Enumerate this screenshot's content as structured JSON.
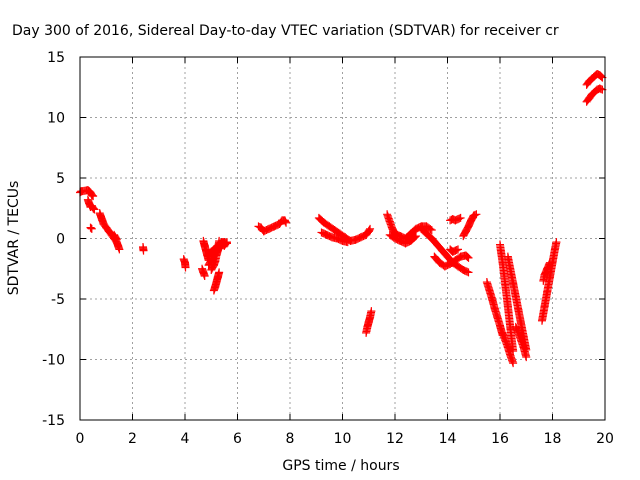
{
  "chart_data": {
    "type": "scatter",
    "title": "Day 300 of 2016, Sidereal Day-to-day VTEC variation (SDTVAR) for receiver cr",
    "xlabel": "GPS time / hours",
    "ylabel": "SDTVAR / TECUs",
    "xlim": [
      0,
      20
    ],
    "ylim": [
      -15,
      15
    ],
    "xticks": [
      "0",
      "2",
      "4",
      "6",
      "8",
      "10",
      "12",
      "14",
      "16",
      "18",
      "20"
    ],
    "yticks": [
      "15",
      "10",
      "5",
      "0",
      "-5",
      "-10",
      "-15"
    ],
    "grid": true,
    "marker": "+",
    "color": "#ff0000",
    "series": [
      {
        "x": [
          0.0,
          0.05,
          0.3,
          0.35,
          0.4,
          0.45,
          0.5
        ],
        "y": [
          3.8,
          3.9,
          4.0,
          3.9,
          3.8,
          3.6,
          3.5
        ]
      },
      {
        "x": [
          0.3,
          0.35,
          0.4,
          0.45,
          0.5,
          0.55
        ],
        "y": [
          3.2,
          2.9,
          2.6,
          2.7,
          2.5,
          2.4
        ]
      },
      {
        "x": [
          0.4,
          0.45
        ],
        "y": [
          0.9,
          0.8
        ]
      },
      {
        "x": [
          0.75,
          0.8,
          0.85,
          0.9,
          1.0,
          1.1,
          1.2,
          1.3,
          1.4,
          1.45,
          1.5
        ],
        "y": [
          2.1,
          1.8,
          1.5,
          1.2,
          0.9,
          0.6,
          0.3,
          0.0,
          -0.3,
          -0.6,
          -0.9
        ]
      },
      {
        "x": [
          1.3,
          1.35,
          1.4
        ],
        "y": [
          0.3,
          0.1,
          -0.1
        ]
      },
      {
        "x": [
          2.4,
          2.42
        ],
        "y": [
          -0.7,
          -1.0
        ]
      },
      {
        "x": [
          3.95,
          4.0,
          4.02
        ],
        "y": [
          -1.7,
          -2.0,
          -2.4
        ]
      },
      {
        "x": [
          4.7,
          4.75,
          4.8,
          4.85,
          4.9
        ],
        "y": [
          -0.2,
          -0.6,
          -1.0,
          -1.4,
          -1.8
        ]
      },
      {
        "x": [
          4.65,
          4.7,
          4.75
        ],
        "y": [
          -2.5,
          -2.8,
          -3.1
        ]
      },
      {
        "x": [
          4.9,
          5.0,
          5.1,
          5.2,
          5.3,
          5.4,
          5.5,
          5.6
        ],
        "y": [
          -1.3,
          -1.1,
          -0.9,
          -0.7,
          -0.5,
          -0.3,
          -0.3,
          -0.4
        ]
      },
      {
        "x": [
          4.9,
          5.0,
          5.1,
          5.2,
          5.3,
          5.4,
          5.5
        ],
        "y": [
          -2.2,
          -1.8,
          -1.4,
          -1.1,
          -0.8,
          -0.5,
          -0.3
        ]
      },
      {
        "x": [
          5.0,
          5.1,
          5.15,
          5.2,
          5.25,
          5.3
        ],
        "y": [
          -2.6,
          -2.2,
          -1.9,
          -1.4,
          -1.0,
          -0.2
        ]
      },
      {
        "x": [
          5.1,
          5.15,
          5.2,
          5.25,
          5.3
        ],
        "y": [
          -4.3,
          -4.0,
          -3.6,
          -3.2,
          -2.8
        ]
      },
      {
        "x": [
          5.3,
          5.35,
          5.4,
          5.5,
          5.6
        ],
        "y": [
          -0.8,
          -0.6,
          -0.5,
          -0.6,
          -0.3
        ]
      },
      {
        "x": [
          6.8,
          6.9,
          7.0,
          7.2,
          7.4,
          7.6,
          7.7,
          7.8,
          7.85
        ],
        "y": [
          1.0,
          0.9,
          0.6,
          0.8,
          1.0,
          1.2,
          1.5,
          1.5,
          1.3
        ]
      },
      {
        "x": [
          9.1,
          9.2,
          9.3,
          9.5,
          9.7,
          9.9,
          10.1,
          10.3,
          10.5,
          10.7,
          10.9,
          11.0,
          11.05
        ],
        "y": [
          1.7,
          1.5,
          1.3,
          1.0,
          0.7,
          0.4,
          0.1,
          -0.2,
          -0.1,
          0.1,
          0.3,
          0.6,
          0.8
        ]
      },
      {
        "x": [
          9.2,
          9.4,
          9.6,
          9.8,
          10.0,
          10.2
        ],
        "y": [
          0.5,
          0.3,
          0.1,
          0.0,
          -0.2,
          -0.3
        ]
      },
      {
        "x": [
          10.9,
          10.95,
          11.0,
          11.05,
          11.1
        ],
        "y": [
          -7.8,
          -7.3,
          -6.9,
          -6.5,
          -6.0
        ]
      },
      {
        "x": [
          11.7,
          11.8,
          11.9,
          12.0,
          12.2,
          12.4,
          12.6,
          12.8,
          13.0,
          13.2,
          13.4
        ],
        "y": [
          2.0,
          1.4,
          0.8,
          0.4,
          0.2,
          0.0,
          0.4,
          0.8,
          1.0,
          1.0,
          0.7
        ]
      },
      {
        "x": [
          11.8,
          12.0,
          12.2,
          12.4,
          12.6,
          12.8
        ],
        "y": [
          0.3,
          0.0,
          -0.2,
          -0.4,
          -0.2,
          0.2
        ]
      },
      {
        "x": [
          13.0,
          13.2,
          13.4,
          13.6,
          13.8,
          14.0,
          14.2,
          14.4,
          14.6,
          14.8
        ],
        "y": [
          0.8,
          0.4,
          0.0,
          -0.5,
          -1.0,
          -1.5,
          -2.0,
          -2.3,
          -2.6,
          -2.8
        ]
      },
      {
        "x": [
          13.5,
          13.7,
          13.9,
          14.1,
          14.3,
          14.5,
          14.7,
          14.8
        ],
        "y": [
          -1.5,
          -2.0,
          -2.3,
          -2.1,
          -1.8,
          -1.5,
          -1.4,
          -1.6
        ]
      },
      {
        "x": [
          14.1,
          14.2,
          14.3,
          14.4
        ],
        "y": [
          -0.9,
          -1.1,
          -1.0,
          -0.9
        ]
      },
      {
        "x": [
          14.1,
          14.2,
          14.3,
          14.4,
          14.5
        ],
        "y": [
          1.5,
          1.6,
          1.5,
          1.6,
          1.7
        ]
      },
      {
        "x": [
          14.6,
          14.7,
          14.8,
          14.9,
          15.0,
          15.1
        ],
        "y": [
          0.2,
          0.6,
          1.0,
          1.5,
          1.9,
          2.0
        ]
      },
      {
        "x": [
          15.5,
          15.6,
          15.7,
          15.8,
          15.9,
          16.0,
          16.1
        ],
        "y": [
          -3.6,
          -4.3,
          -5.0,
          -5.8,
          -6.5,
          -7.2,
          -8.0
        ]
      },
      {
        "x": [
          16.0,
          16.1,
          16.2,
          16.3,
          16.4,
          16.5
        ],
        "y": [
          -0.5,
          -2.0,
          -3.8,
          -5.6,
          -7.5,
          -9.3
        ]
      },
      {
        "x": [
          16.1,
          16.2,
          16.3,
          16.4,
          16.5
        ],
        "y": [
          -7.8,
          -8.4,
          -9.0,
          -9.7,
          -10.3
        ]
      },
      {
        "x": [
          16.3,
          16.4,
          16.5,
          16.6,
          16.7,
          16.8,
          16.9,
          17.0
        ],
        "y": [
          -1.5,
          -2.6,
          -3.7,
          -4.8,
          -5.9,
          -7.0,
          -8.1,
          -9.2
        ]
      },
      {
        "x": [
          16.6,
          16.7,
          16.8,
          16.9,
          17.0
        ],
        "y": [
          -7.3,
          -7.8,
          -8.4,
          -9.0,
          -9.8
        ]
      },
      {
        "x": [
          17.6,
          17.7,
          17.8,
          17.9,
          18.0,
          18.1,
          18.15
        ],
        "y": [
          -6.8,
          -5.6,
          -4.4,
          -3.2,
          -2.0,
          -0.8,
          -0.3
        ]
      },
      {
        "x": [
          17.65,
          17.7,
          17.8,
          17.9
        ],
        "y": [
          -3.5,
          -3.0,
          -2.5,
          -2.0
        ]
      },
      {
        "x": [
          19.3,
          19.4,
          19.5,
          19.6,
          19.7,
          19.8,
          19.9
        ],
        "y": [
          11.3,
          11.6,
          11.9,
          12.1,
          12.3,
          12.4,
          12.3
        ]
      },
      {
        "x": [
          19.3,
          19.4,
          19.5,
          19.6,
          19.7,
          19.8,
          19.9
        ],
        "y": [
          12.7,
          13.0,
          13.2,
          13.4,
          13.6,
          13.5,
          13.3
        ]
      }
    ]
  }
}
